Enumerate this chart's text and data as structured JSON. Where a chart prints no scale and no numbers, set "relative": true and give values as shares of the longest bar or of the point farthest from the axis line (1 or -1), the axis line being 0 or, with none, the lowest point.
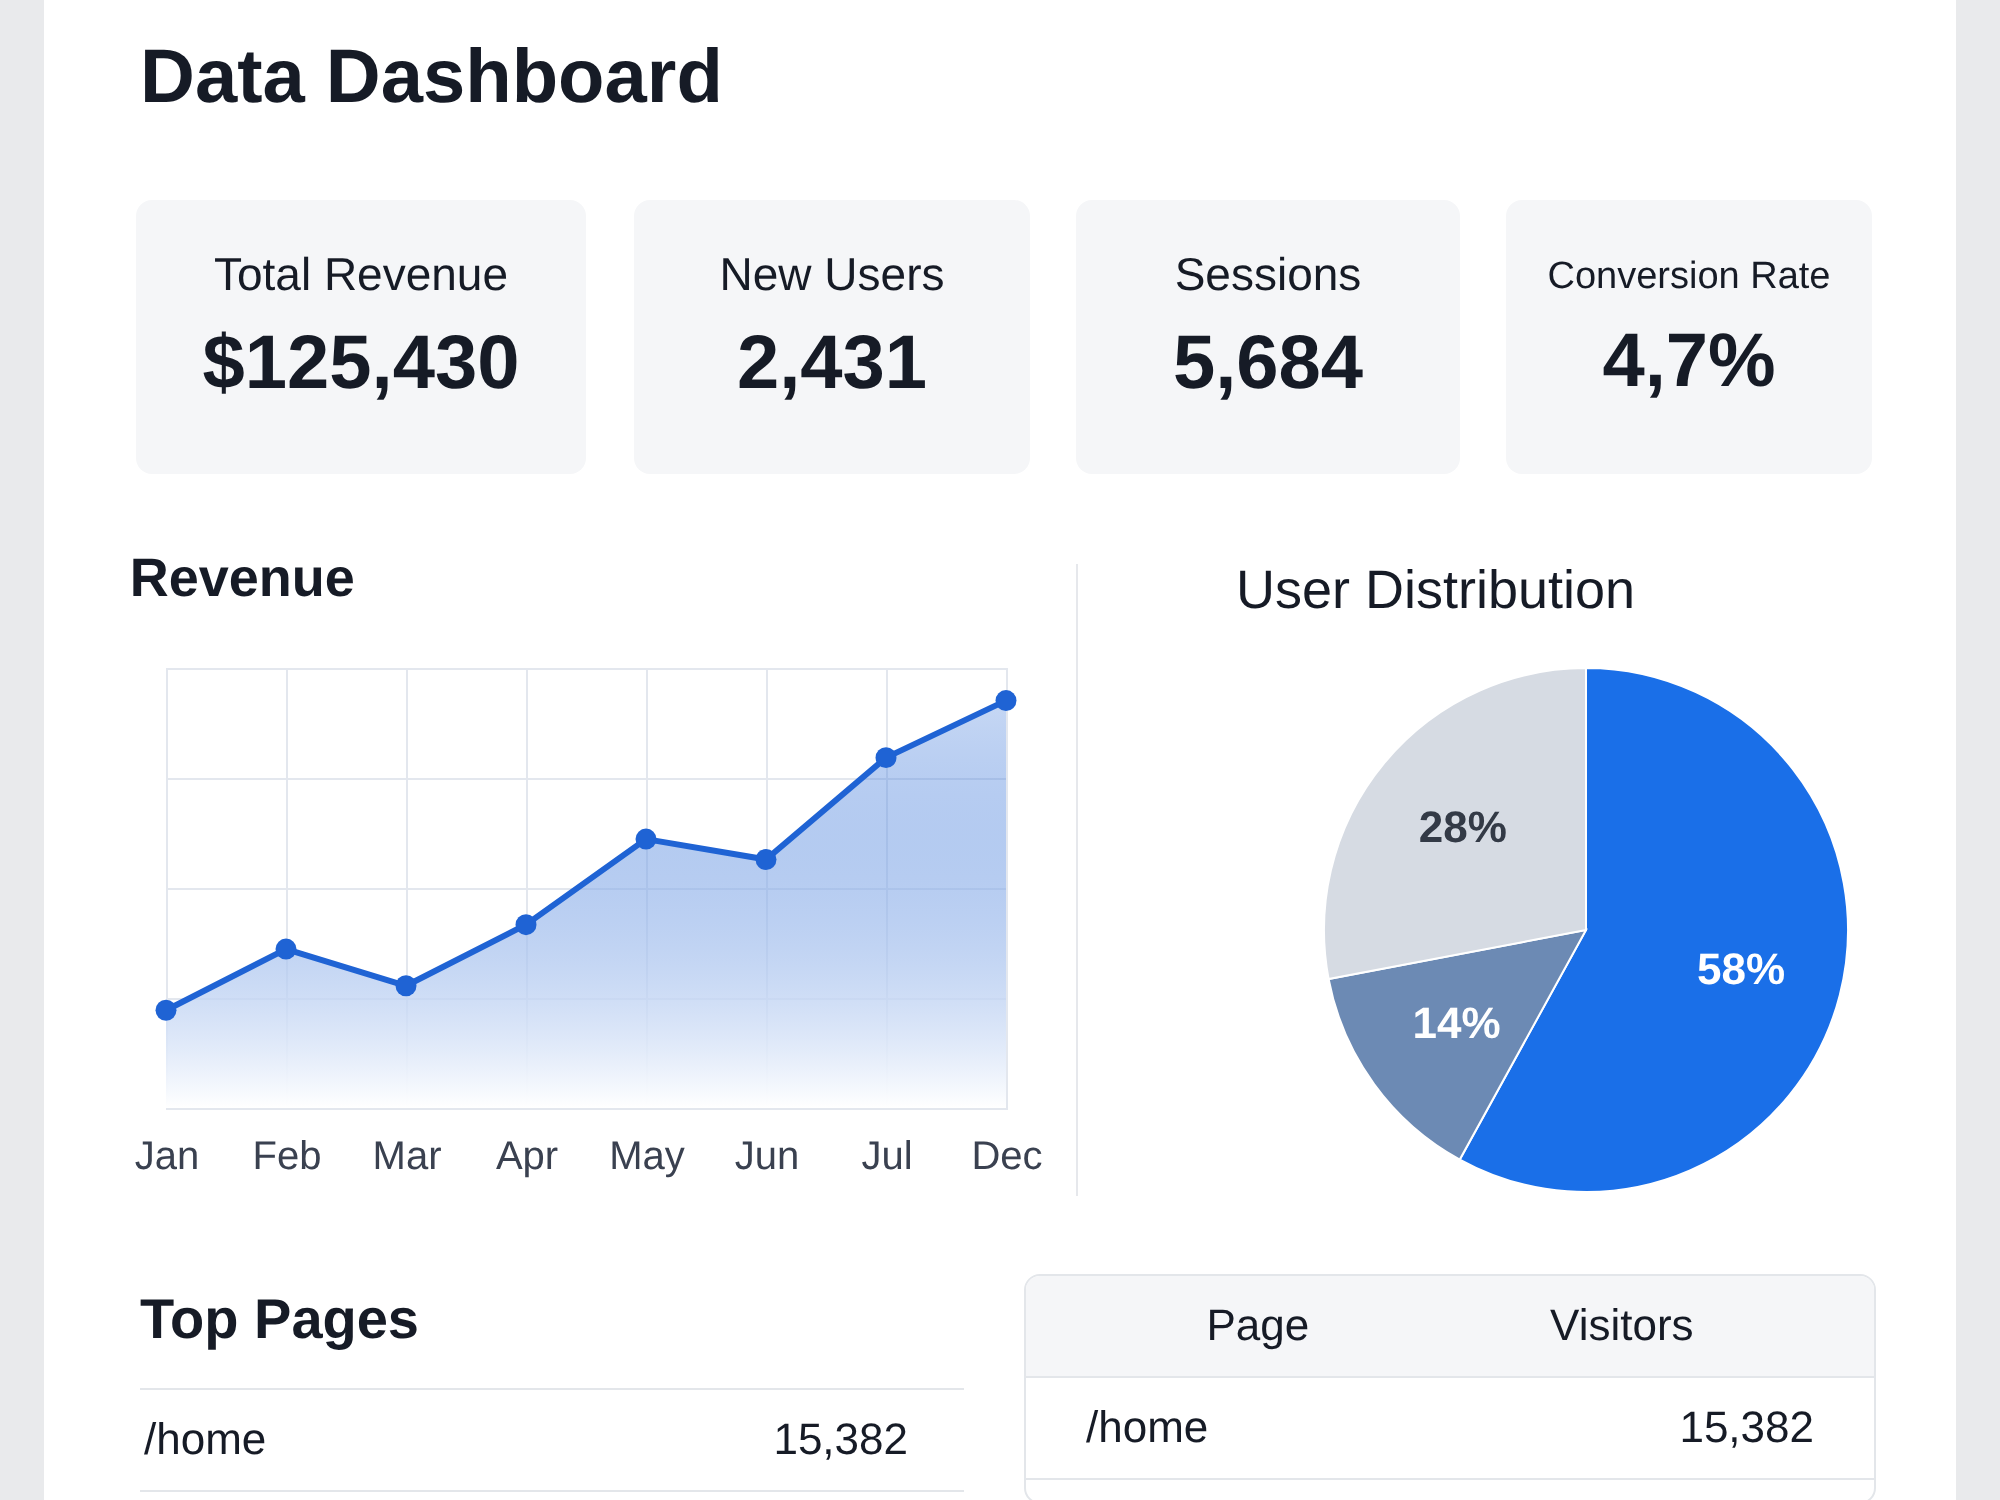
{
  "chart_data": [
    {
      "type": "other",
      "title": "Data Dashboard"
    },
    {
      "type": "other",
      "title": "Total Revenue",
      "annotations": [
        "$125,430"
      ]
    },
    {
      "type": "other",
      "title": "New Users",
      "annotations": [
        "2,431"
      ]
    },
    {
      "type": "other",
      "title": "Sessions",
      "annotations": [
        "5,684"
      ]
    },
    {
      "type": "other",
      "title": "Conversion Rate",
      "annotations": [
        "4,7%"
      ]
    },
    {
      "type": "area",
      "title": "Revenue",
      "relative": true,
      "categories": [
        "Jan",
        "Feb",
        "Mar",
        "Apr",
        "May",
        "Jun",
        "Jul",
        "Dec"
      ],
      "series": [
        {
          "color": "#1f63d4",
          "values": [
            0.24,
            0.39,
            0.3,
            0.45,
            0.66,
            0.61,
            0.86,
            1
          ]
        }
      ],
      "marker": "circle",
      "grid": true
    },
    {
      "type": "pie",
      "title": "User Distribution",
      "categories": [
        null,
        null,
        null
      ],
      "values": [
        58,
        14,
        28
      ],
      "colors": [
        "#1a6fe8",
        "#6c8ab4",
        "#d6dbe3"
      ],
      "value_labels": [
        "58%",
        "14%",
        "28%"
      ]
    },
    {
      "type": "other",
      "title": "Top Pages",
      "annotations": [
        "/home",
        "15,382"
      ]
    },
    {
      "type": "other",
      "annotations": [
        "Page",
        "Visitors",
        "/home",
        "15,382"
      ]
    }
  ]
}
